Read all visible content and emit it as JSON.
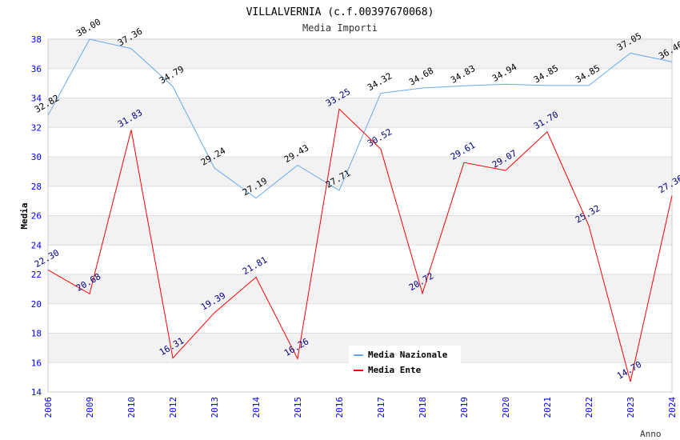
{
  "chart_data": {
    "type": "line",
    "title": "VILLALVERNIA (c.f.00397670068)",
    "subtitle": "Media Importi",
    "xlabel": "Anno",
    "ylabel": "Media",
    "ylim": [
      14,
      38
    ],
    "yticks": [
      14,
      16,
      18,
      20,
      22,
      24,
      26,
      28,
      30,
      32,
      34,
      36,
      38
    ],
    "categories": [
      "2006",
      "2009",
      "2010",
      "2012",
      "2013",
      "2014",
      "2015",
      "2016",
      "2017",
      "2018",
      "2019",
      "2020",
      "2021",
      "2022",
      "2023",
      "2024"
    ],
    "legend_position": "top-right",
    "series": [
      {
        "name": "Media Nazionale",
        "color": "#66aaee",
        "label_color": "#000000",
        "values": [
          32.82,
          38.0,
          37.36,
          34.79,
          29.24,
          27.19,
          29.43,
          27.71,
          34.32,
          34.68,
          34.83,
          34.94,
          34.85,
          34.85,
          37.05,
          36.46
        ]
      },
      {
        "name": "Media Ente",
        "color": "#ff0000",
        "label_color": "#000080",
        "values": [
          22.3,
          20.68,
          31.83,
          16.31,
          19.39,
          21.81,
          16.26,
          33.25,
          30.52,
          20.72,
          29.61,
          29.07,
          31.7,
          25.32,
          14.7,
          27.36
        ]
      }
    ]
  }
}
